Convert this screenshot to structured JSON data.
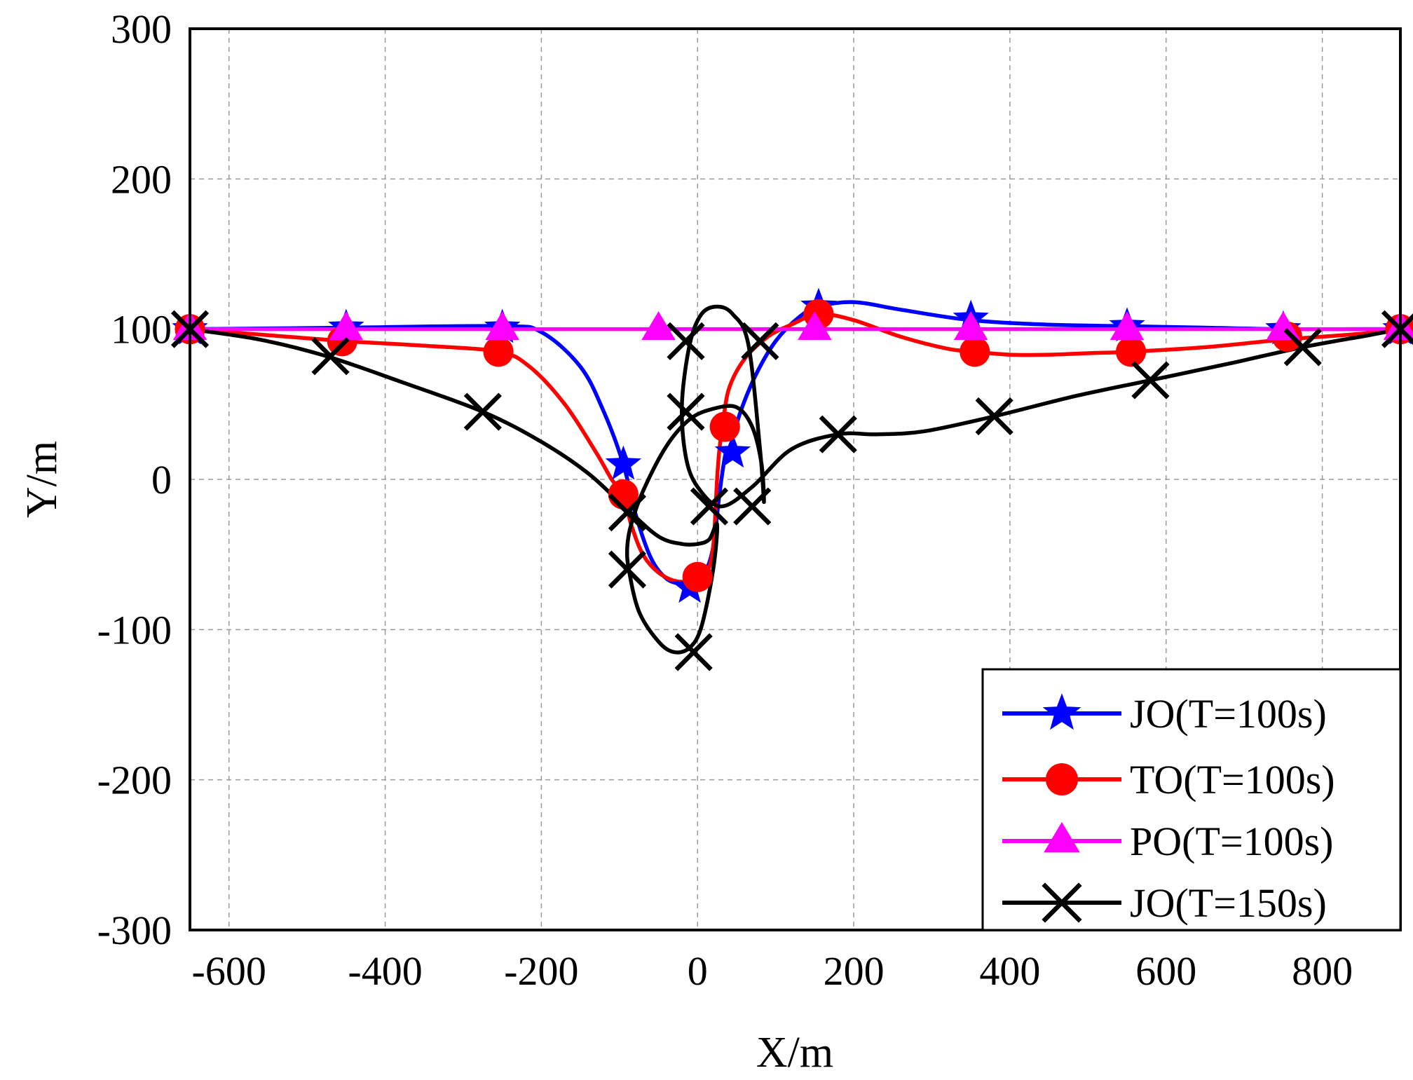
{
  "chart_data": {
    "type": "line",
    "title": "",
    "xlabel": "X/m",
    "ylabel": "Y/m",
    "xlim": [
      -650,
      900
    ],
    "ylim": [
      -300,
      300
    ],
    "xticks": [
      -600,
      -400,
      -200,
      0,
      200,
      400,
      600,
      800
    ],
    "yticks": [
      -300,
      -200,
      -100,
      0,
      100,
      200,
      300
    ],
    "xtick_labels": [
      "-600",
      "-400",
      "-200",
      "0",
      "200",
      "400",
      "600",
      "800"
    ],
    "ytick_labels": [
      "-300",
      "-200",
      "-100",
      "0",
      "100",
      "200",
      "300"
    ],
    "grid": true,
    "legend_position": "bottom-right",
    "series": [
      {
        "name": "JO(T=100s)",
        "color": "#0000ff",
        "marker": "star",
        "x": [
          -650,
          -450,
          -250,
          -200,
          -150,
          -120,
          -95,
          -80,
          -60,
          -40,
          -20,
          -10,
          0,
          10,
          20,
          28,
          35,
          38,
          42,
          55,
          75,
          100,
          130,
          155,
          200,
          260,
          350,
          450,
          550,
          650,
          750,
          850,
          900
        ],
        "y": [
          100,
          101,
          102,
          98,
          75,
          45,
          10,
          -22,
          -52,
          -66,
          -70,
          -72,
          -70,
          -62,
          -45,
          -10,
          15,
          18,
          22,
          45,
          70,
          92,
          108,
          115,
          118,
          113,
          106,
          103,
          102,
          101,
          100,
          100,
          100
        ],
        "marker_x": [
          -650,
          -450,
          -250,
          -95,
          -10,
          45,
          155,
          350,
          550,
          750,
          900
        ],
        "marker_y": [
          100,
          101,
          101,
          10,
          -72,
          18,
          115,
          107,
          102,
          100,
          100
        ]
      },
      {
        "name": "TO(T=100s)",
        "color": "#ff0000",
        "marker": "circle",
        "x": [
          -650,
          -550,
          -450,
          -350,
          -255,
          -215,
          -170,
          -130,
          -110,
          -95,
          -85,
          -70,
          -50,
          -25,
          0,
          12,
          20,
          25,
          28,
          32,
          40,
          60,
          90,
          120,
          155,
          200,
          260,
          320,
          355,
          400,
          450,
          500,
          555,
          650,
          750,
          850,
          900
        ],
        "y": [
          100,
          96,
          92,
          89,
          85,
          75,
          50,
          18,
          0,
          -10,
          -30,
          -50,
          -62,
          -68,
          -66,
          -62,
          -45,
          0,
          20,
          35,
          60,
          80,
          95,
          103,
          110,
          106,
          95,
          87,
          85,
          83,
          83,
          84,
          85,
          88,
          93,
          97,
          100
        ],
        "marker_x": [
          -650,
          -455,
          -255,
          -95,
          0,
          35,
          155,
          355,
          555,
          755,
          900
        ],
        "marker_y": [
          100,
          92,
          85,
          -10,
          -65,
          35,
          110,
          85,
          85,
          95,
          100
        ]
      },
      {
        "name": "PO(T=100s)",
        "color": "#ff00ff",
        "marker": "triangle",
        "x": [
          -650,
          900
        ],
        "y": [
          100,
          100
        ],
        "marker_x": [
          -650,
          -450,
          -250,
          -50,
          150,
          350,
          550,
          750,
          900
        ],
        "marker_y": [
          100,
          100,
          100,
          100,
          100,
          100,
          100,
          100,
          100
        ]
      },
      {
        "name": "JO(T=150s)",
        "color": "#000000",
        "marker": "x",
        "x": [
          -650,
          -560,
          -475,
          -380,
          -275,
          -200,
          -140,
          -90,
          -50,
          -20,
          0,
          15,
          25,
          20,
          5,
          -10,
          -30,
          -50,
          -75,
          -88,
          -90,
          -85,
          -70,
          -40,
          -10,
          20,
          50,
          70,
          82,
          85,
          80,
          65,
          45,
          25,
          5,
          -10,
          -20,
          -15,
          0,
          30,
          70,
          120,
          180,
          230,
          290,
          380,
          480,
          580,
          680,
          775,
          860,
          900
        ],
        "y": [
          100,
          93,
          82,
          65,
          45,
          25,
          4,
          -20,
          -38,
          -43,
          -43,
          -40,
          -30,
          -60,
          -98,
          -112,
          -115,
          -108,
          -88,
          -60,
          -45,
          -30,
          -8,
          22,
          40,
          47,
          48,
          35,
          10,
          -15,
          20,
          90,
          110,
          115,
          110,
          90,
          50,
          15,
          -5,
          -18,
          -5,
          20,
          30,
          30,
          32,
          42,
          55,
          66,
          77,
          88,
          96,
          100
        ],
        "marker_x": [
          -650,
          -470,
          -275,
          -90,
          -90,
          -5,
          -15,
          -15,
          15,
          70,
          80,
          180,
          380,
          580,
          775,
          900
        ],
        "marker_y": [
          100,
          82,
          45,
          -60,
          -22,
          -115,
          92,
          45,
          -18,
          -18,
          92,
          30,
          42,
          66,
          88,
          100
        ]
      }
    ]
  }
}
